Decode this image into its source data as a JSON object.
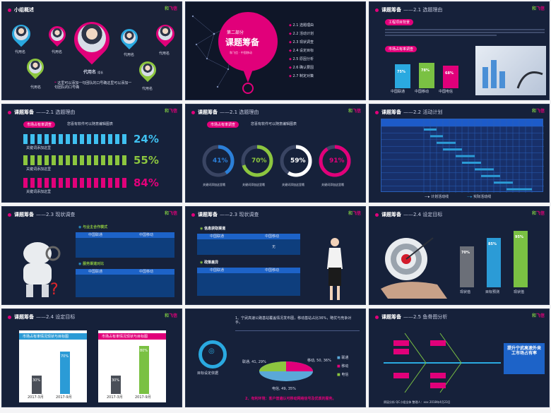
{
  "slide1": {
    "title": "小组概述",
    "leader_name": "代用名",
    "leader_tag": "组长",
    "member_label": "代用名",
    "quote": "这里可以添加一句团队的口号确这里可以添加一句团队的口号确"
  },
  "slide2": {
    "part": "第二部分",
    "title": "课题筹备",
    "items": [
      {
        "no": "2.1",
        "label": "选题理由"
      },
      {
        "no": "2.2",
        "label": "活动计划"
      },
      {
        "no": "2.3",
        "label": "现状调查"
      },
      {
        "no": "2.4",
        "label": "设定目标"
      },
      {
        "no": "2.5",
        "label": "原因分析"
      },
      {
        "no": "2.6",
        "label": "确认要因"
      },
      {
        "no": "2.7",
        "label": "制定对策"
      }
    ]
  },
  "slide3": {
    "header": "课题筹备",
    "sub": "——2.1  选题理由",
    "section1": "工程项目背景",
    "section2": "市场占有率调查",
    "bars": [
      {
        "label": "中国联通",
        "value": 75,
        "text": "75%"
      },
      {
        "label": "中国移动",
        "value": 78,
        "text": "78%"
      },
      {
        "label": "中国电信",
        "value": 68,
        "text": "68%"
      }
    ]
  },
  "slide4": {
    "header": "课题筹备",
    "sub": "——2.1  选题理由",
    "pill": "市场占有率调查",
    "note": "您喜有软件可以随意编辑图表",
    "rows": [
      {
        "percent": "24%",
        "label": "关键词添加这里",
        "color": "#3fc0f0"
      },
      {
        "percent": "55%",
        "label": "关键词添加这里",
        "color": "#8cc63f"
      },
      {
        "percent": "84%",
        "label": "关键词添加这里",
        "color": "#e1007a"
      }
    ]
  },
  "slide5": {
    "header": "课题筹备",
    "sub": "——2.1  选题理由",
    "pill": "市场占有率调查",
    "note": "您喜有软件可以随意编辑图表",
    "rings": [
      {
        "percent": "41%",
        "value": 41,
        "color": "#2b7fd8",
        "label": "关键词添加这里哦"
      },
      {
        "percent": "70%",
        "value": 70,
        "color": "#8cc63f",
        "label": "关键词添加这里哦"
      },
      {
        "percent": "59%",
        "value": 59,
        "color": "#ffffff",
        "label": "关键词添加这里哦"
      },
      {
        "percent": "91%",
        "value": 91,
        "color": "#e1007a",
        "label": "关键词添加这里哦"
      }
    ]
  },
  "slide6": {
    "header": "课题筹备",
    "sub": "——2.2  活动计划",
    "legend_plan": "计划活动线",
    "legend_actual": "实际活动线"
  },
  "slide7": {
    "header": "课题筹备",
    "sub": "——2.3  现状调查",
    "block1": "与业主合作模式",
    "block2": "服务渠道对比",
    "col1": "中国联通",
    "col2": "中国移动"
  },
  "slide8": {
    "header": "课题筹备",
    "sub": "——2.3  现状调查",
    "block1": "信息获取渠道",
    "block2": "政策差异",
    "col1": "中国联通",
    "col2": "中国移动",
    "cell_no": "无"
  },
  "slide9": {
    "header": "课题筹备",
    "sub": "——2.4  设定目标",
    "bars": [
      {
        "label": "现状值",
        "value": 70,
        "text": "70%",
        "color": "#6b6f78"
      },
      {
        "label": "目标预测",
        "value": 85,
        "text": "85%",
        "color": "#2b9bd6"
      },
      {
        "label": "现状值",
        "value": 95,
        "text": "95%",
        "color": "#7ac143"
      }
    ]
  },
  "slide10": {
    "header": "课题筹备",
    "sub": "——2.4  设定目标",
    "card1": "市场占有率情况现状与目标图",
    "card2": "市场占有率情况现状与目标图",
    "chart1": [
      {
        "label": "2017-3月",
        "value": 30,
        "text": "30%",
        "color": "#4a4f58"
      },
      {
        "label": "2017-9月",
        "value": 70,
        "text": "70%",
        "color": "#2b9bd6"
      }
    ],
    "chart2": [
      {
        "label": "2017-3月",
        "value": 30,
        "text": "30%",
        "color": "#4a4f58"
      },
      {
        "label": "2017-9月",
        "value": 80,
        "text": "80%",
        "color": "#7ac143"
      }
    ]
  },
  "slide11": {
    "point1": "1、宁武高速公路基站覆盖情况发布图，移动基站占比36%，略优与竞争对手。",
    "point2": "2、有利环境：客户普遍认可移动网络信号及优质的服务。",
    "badge": "目标设定依据",
    "slices": [
      {
        "label": "联通, 41, 29%"
      },
      {
        "label": "移动, 50, 36%"
      },
      {
        "label": "电信, 49, 35%"
      }
    ],
    "legend": [
      "联通",
      "移动",
      "电信"
    ]
  },
  "slide12": {
    "header": "课题筹备",
    "sub": "——2.5  鱼骨图分析",
    "result": "提升宁武高速外来工市场占有率",
    "footer": "原因分析  QC小组全体  整理人：xxx  2018年4月23日"
  }
}
